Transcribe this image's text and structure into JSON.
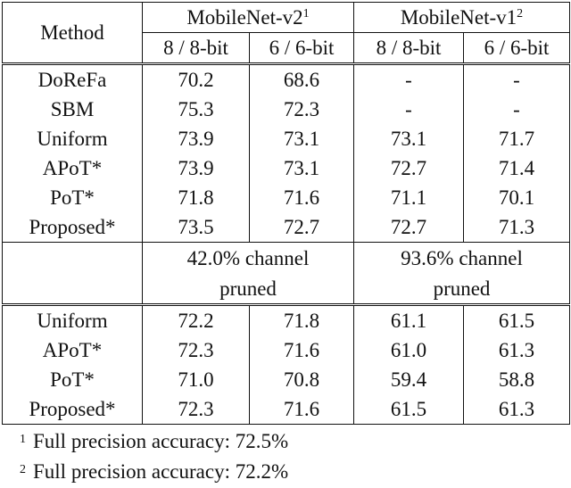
{
  "header": {
    "method": "Method",
    "groups": [
      {
        "name": "MobileNet-v2",
        "sup": "1"
      },
      {
        "name": "MobileNet-v1",
        "sup": "2"
      }
    ],
    "bits": [
      "8 / 8-bit",
      "6 / 6-bit",
      "8 / 8-bit",
      "6 / 6-bit"
    ]
  },
  "section1": [
    {
      "method": "DoReFa",
      "values": [
        "70.2",
        "68.6",
        "-",
        "-"
      ],
      "bold": false
    },
    {
      "method": "SBM",
      "values": [
        "75.3",
        "72.3",
        "-",
        "-"
      ],
      "bold": false
    },
    {
      "method": "Uniform",
      "values": [
        "73.9",
        "73.1",
        "73.1",
        "71.7"
      ],
      "bold": false
    },
    {
      "method": "APoT*",
      "values": [
        "73.9",
        "73.1",
        "72.7",
        "71.4"
      ],
      "bold": false
    },
    {
      "method": "PoT*",
      "values": [
        "71.8",
        "71.6",
        "71.1",
        "70.1"
      ],
      "bold": false
    },
    {
      "method": "Proposed*",
      "values": [
        "73.5",
        "72.7",
        "72.7",
        "71.3"
      ],
      "bold": true
    }
  ],
  "pruning": {
    "v2_line1": "42.0% channel",
    "v2_line2": "pruned",
    "v1_line1": "93.6% channel",
    "v1_line2": "pruned"
  },
  "section2": [
    {
      "method": "Uniform",
      "values": [
        "72.2",
        "71.8",
        "61.1",
        "61.5"
      ],
      "bold": false
    },
    {
      "method": "APoT*",
      "values": [
        "72.3",
        "71.6",
        "61.0",
        "61.3"
      ],
      "bold": false
    },
    {
      "method": "PoT*",
      "values": [
        "71.0",
        "70.8",
        "59.4",
        "58.8"
      ],
      "bold": false
    },
    {
      "method": "Proposed*",
      "values": [
        "72.3",
        "71.6",
        "61.5",
        "61.3"
      ],
      "bold": true
    }
  ],
  "footnotes": [
    {
      "mark": "1",
      "text": "Full precision accuracy: 72.5%"
    },
    {
      "mark": "2",
      "text": "Full precision accuracy: 72.2%"
    }
  ]
}
